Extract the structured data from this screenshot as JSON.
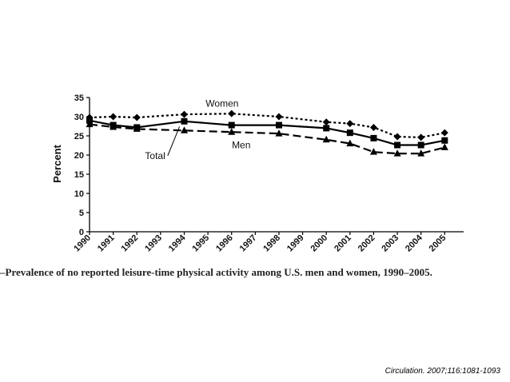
{
  "caption": "–Prevalence of no reported leisure-time physical activity among U.S. men and women, 1990–2005.",
  "citation": "Circulation. 2007;116:1081-1093",
  "chart_data": {
    "type": "line",
    "title": "",
    "xlabel": "",
    "ylabel": "Percent",
    "ylim": [
      0,
      35
    ],
    "yticks": [
      0,
      5,
      10,
      15,
      20,
      25,
      30,
      35
    ],
    "xtick_labels": [
      "1990",
      "1991",
      "1992",
      "1993",
      "1994",
      "1995",
      "1996",
      "1997",
      "1998",
      "1999",
      "2000",
      "2001",
      "2002",
      "2003",
      "2004",
      "2005"
    ],
    "grid": false,
    "x": [
      1990,
      1991,
      1992,
      1994,
      1996,
      1998,
      2000,
      2001,
      2002,
      2003,
      2004,
      2005
    ],
    "series": [
      {
        "name": "Women",
        "style": "dotted",
        "marker": "diamond",
        "values": [
          29.8,
          30.0,
          29.8,
          30.6,
          30.8,
          30.0,
          28.6,
          28.2,
          27.2,
          24.8,
          24.6,
          25.8
        ]
      },
      {
        "name": "Total",
        "style": "solid",
        "marker": "square",
        "values": [
          29.0,
          27.8,
          27.2,
          28.8,
          27.8,
          27.8,
          27.0,
          25.8,
          24.4,
          22.6,
          22.6,
          23.8
        ]
      },
      {
        "name": "Men",
        "style": "dashed",
        "marker": "triangle",
        "values": [
          28.0,
          27.3,
          26.8,
          26.4,
          26.0,
          25.6,
          24.0,
          23.0,
          20.8,
          20.4,
          20.4,
          22.0
        ]
      }
    ]
  }
}
